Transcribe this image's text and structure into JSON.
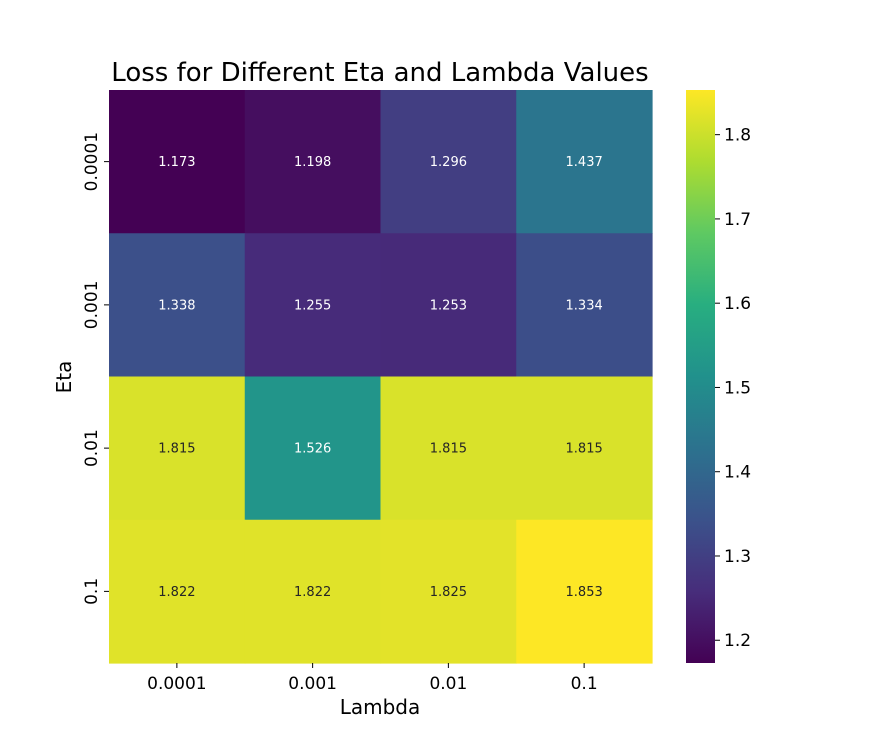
{
  "chart_data": {
    "type": "heatmap",
    "title": "Loss for Different Eta and Lambda Values",
    "xlabel": "Lambda",
    "ylabel": "Eta",
    "x_categories": [
      "0.0001",
      "0.001",
      "0.01",
      "0.1"
    ],
    "y_categories": [
      "0.0001",
      "0.001",
      "0.01",
      "0.1"
    ],
    "values": [
      [
        1.173,
        1.198,
        1.296,
        1.437
      ],
      [
        1.338,
        1.255,
        1.253,
        1.334
      ],
      [
        1.815,
        1.526,
        1.815,
        1.815
      ],
      [
        1.822,
        1.822,
        1.825,
        1.853
      ]
    ],
    "value_labels": [
      [
        "1.173",
        "1.198",
        "1.296",
        "1.437"
      ],
      [
        "1.338",
        "1.255",
        "1.253",
        "1.334"
      ],
      [
        "1.815",
        "1.526",
        "1.815",
        "1.815"
      ],
      [
        "1.822",
        "1.822",
        "1.825",
        "1.853"
      ]
    ],
    "colormap": "viridis",
    "vmin": 1.173,
    "vmax": 1.853,
    "colorbar_ticks": [
      1.2,
      1.3,
      1.4,
      1.5,
      1.6,
      1.7,
      1.8
    ],
    "colorbar_tick_labels": [
      "1.2",
      "1.3",
      "1.4",
      "1.5",
      "1.6",
      "1.7",
      "1.8"
    ]
  }
}
